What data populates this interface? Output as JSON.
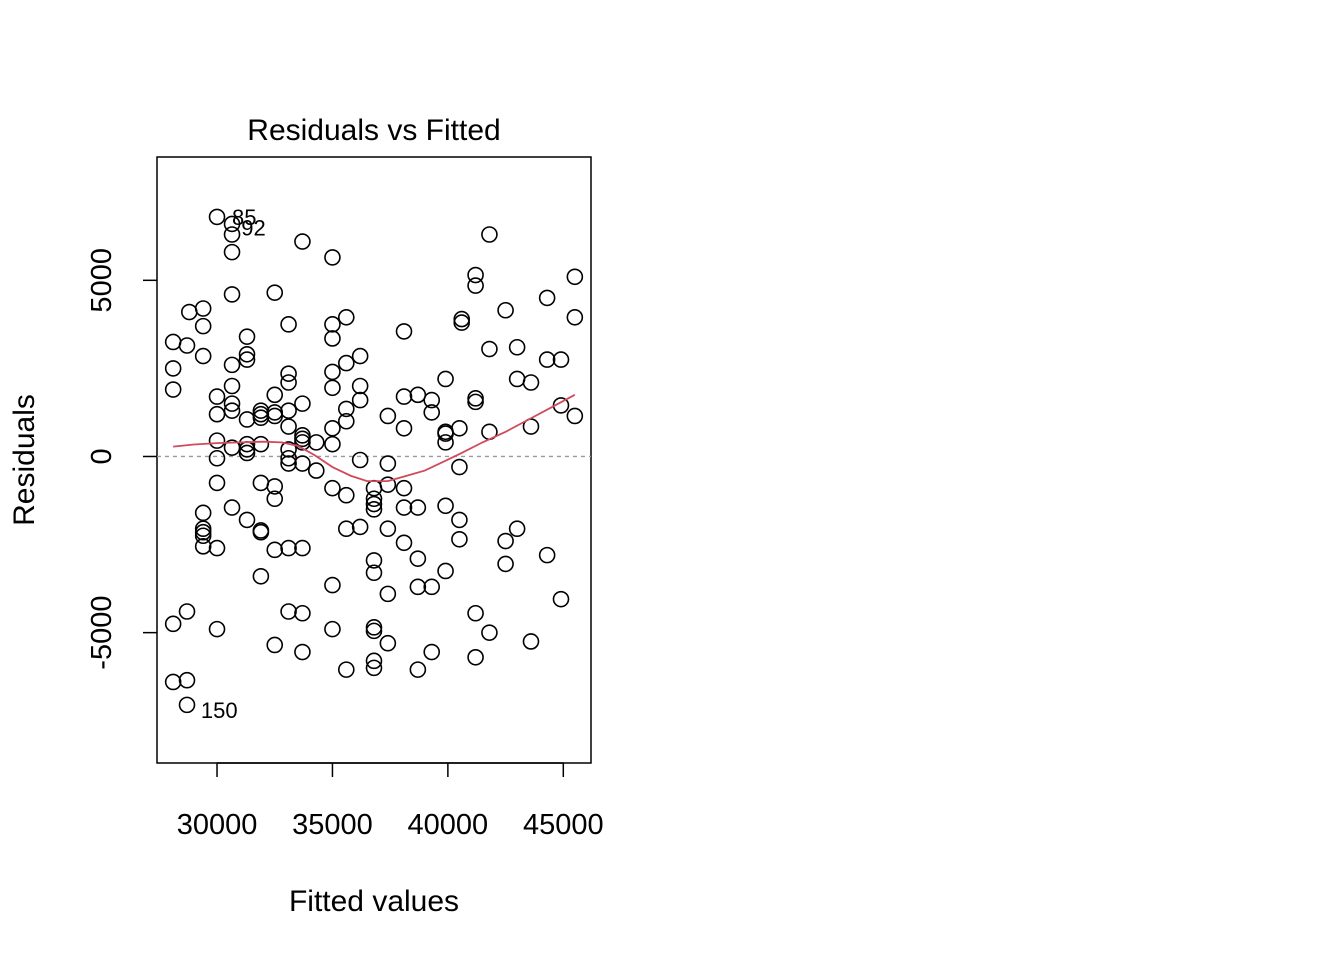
{
  "chart_data": {
    "type": "scatter",
    "title": "Residuals vs Fitted",
    "xlabel": "Fitted values",
    "ylabel": "Residuals",
    "xlim": [
      27400,
      46200
    ],
    "ylim": [
      -8700,
      8500
    ],
    "x_ticks": [
      30000,
      35000,
      40000,
      45000
    ],
    "x_tick_labels": [
      "30000",
      "35000",
      "40000",
      "45000"
    ],
    "y_ticks": [
      -5000,
      0,
      5000
    ],
    "y_tick_labels": [
      "-5000",
      "0",
      "5000"
    ],
    "reference_line": {
      "y": 0,
      "style": "dashed",
      "color": "#9a9a9a"
    },
    "smooth_color": "#d1495b",
    "grid": false,
    "legend": "none",
    "annotations": [
      {
        "label": "85",
        "x": 30650,
        "y": 6800
      },
      {
        "label": "92",
        "x": 31050,
        "y": 6500
      },
      {
        "label": "150",
        "x": 29300,
        "y": -7200
      }
    ],
    "points": [
      [
        30000,
        6800
      ],
      [
        30650,
        6600
      ],
      [
        30650,
        6300
      ],
      [
        30650,
        5800
      ],
      [
        30650,
        4600
      ],
      [
        33700,
        6100
      ],
      [
        35000,
        5650
      ],
      [
        41800,
        6300
      ],
      [
        41200,
        5150
      ],
      [
        41200,
        4850
      ],
      [
        45500,
        5100
      ],
      [
        44300,
        4500
      ],
      [
        45500,
        3950
      ],
      [
        42500,
        4150
      ],
      [
        40600,
        3900
      ],
      [
        40600,
        3800
      ],
      [
        38100,
        3550
      ],
      [
        35600,
        3950
      ],
      [
        35000,
        3750
      ],
      [
        35000,
        3350
      ],
      [
        33100,
        3750
      ],
      [
        32500,
        4650
      ],
      [
        31300,
        3400
      ],
      [
        31300,
        2900
      ],
      [
        31300,
        2750
      ],
      [
        29400,
        4200
      ],
      [
        28800,
        4100
      ],
      [
        29400,
        3700
      ],
      [
        28100,
        3250
      ],
      [
        28700,
        3150
      ],
      [
        29400,
        2850
      ],
      [
        28100,
        2500
      ],
      [
        28100,
        1900
      ],
      [
        30650,
        2600
      ],
      [
        30650,
        2000
      ],
      [
        30000,
        1700
      ],
      [
        30650,
        1500
      ],
      [
        30650,
        1300
      ],
      [
        30000,
        1200
      ],
      [
        31300,
        1050
      ],
      [
        31900,
        1300
      ],
      [
        31900,
        1200
      ],
      [
        31900,
        1100
      ],
      [
        32500,
        1250
      ],
      [
        32500,
        1150
      ],
      [
        32500,
        1750
      ],
      [
        33100,
        2350
      ],
      [
        33100,
        2100
      ],
      [
        33100,
        1300
      ],
      [
        33700,
        1500
      ],
      [
        33100,
        850
      ],
      [
        33700,
        600
      ],
      [
        33700,
        500
      ],
      [
        33700,
        400
      ],
      [
        34300,
        400
      ],
      [
        31300,
        350
      ],
      [
        31900,
        350
      ],
      [
        31300,
        200
      ],
      [
        31300,
        100
      ],
      [
        30650,
        250
      ],
      [
        30000,
        450
      ],
      [
        30000,
        -50
      ],
      [
        33100,
        200
      ],
      [
        33100,
        -50
      ],
      [
        33100,
        -200
      ],
      [
        33700,
        -200
      ],
      [
        34300,
        -400
      ],
      [
        35000,
        2400
      ],
      [
        35000,
        1950
      ],
      [
        35000,
        800
      ],
      [
        35000,
        350
      ],
      [
        35600,
        2650
      ],
      [
        36200,
        2850
      ],
      [
        36200,
        2000
      ],
      [
        36200,
        1600
      ],
      [
        35600,
        1350
      ],
      [
        35600,
        1000
      ],
      [
        36200,
        -100
      ],
      [
        37400,
        1150
      ],
      [
        38100,
        1700
      ],
      [
        38700,
        1750
      ],
      [
        39300,
        1600
      ],
      [
        39300,
        1250
      ],
      [
        38100,
        800
      ],
      [
        39900,
        2200
      ],
      [
        39900,
        700
      ],
      [
        39900,
        650
      ],
      [
        39900,
        400
      ],
      [
        40500,
        800
      ],
      [
        41200,
        1650
      ],
      [
        41200,
        1550
      ],
      [
        41800,
        3050
      ],
      [
        41800,
        700
      ],
      [
        43000,
        3100
      ],
      [
        43000,
        2200
      ],
      [
        43600,
        2100
      ],
      [
        44300,
        2750
      ],
      [
        44900,
        2750
      ],
      [
        44900,
        1450
      ],
      [
        45500,
        1150
      ],
      [
        43600,
        850
      ],
      [
        40500,
        -300
      ],
      [
        37400,
        -200
      ],
      [
        35000,
        -900
      ],
      [
        35600,
        -1100
      ],
      [
        36800,
        -900
      ],
      [
        36800,
        -1200
      ],
      [
        36800,
        -1350
      ],
      [
        36800,
        -1500
      ],
      [
        37400,
        -800
      ],
      [
        38100,
        -900
      ],
      [
        38100,
        -1450
      ],
      [
        38700,
        -1450
      ],
      [
        39900,
        -1400
      ],
      [
        40500,
        -1800
      ],
      [
        35600,
        -2050
      ],
      [
        36200,
        -2000
      ],
      [
        37400,
        -2050
      ],
      [
        38100,
        -2450
      ],
      [
        38700,
        -2900
      ],
      [
        36800,
        -2950
      ],
      [
        36800,
        -3300
      ],
      [
        37400,
        -3900
      ],
      [
        38700,
        -3700
      ],
      [
        39300,
        -3700
      ],
      [
        39900,
        -3250
      ],
      [
        40500,
        -2350
      ],
      [
        42500,
        -2400
      ],
      [
        43000,
        -2050
      ],
      [
        44300,
        -2800
      ],
      [
        42500,
        -3050
      ],
      [
        44900,
        -4050
      ],
      [
        41200,
        -4450
      ],
      [
        41800,
        -5000
      ],
      [
        43600,
        -5250
      ],
      [
        41200,
        -5700
      ],
      [
        39300,
        -5550
      ],
      [
        38700,
        -6050
      ],
      [
        37400,
        -5300
      ],
      [
        36800,
        -5800
      ],
      [
        36800,
        -6000
      ],
      [
        36800,
        -4850
      ],
      [
        36800,
        -4950
      ],
      [
        35600,
        -6050
      ],
      [
        35000,
        -4900
      ],
      [
        35000,
        -3650
      ],
      [
        33700,
        -4450
      ],
      [
        33100,
        -4400
      ],
      [
        33700,
        -5550
      ],
      [
        32500,
        -5350
      ],
      [
        31900,
        -3400
      ],
      [
        32500,
        -2650
      ],
      [
        33100,
        -2600
      ],
      [
        33700,
        -2600
      ],
      [
        31900,
        -2100
      ],
      [
        31900,
        -2150
      ],
      [
        32500,
        -1200
      ],
      [
        32500,
        -850
      ],
      [
        31900,
        -750
      ],
      [
        31300,
        -1800
      ],
      [
        30650,
        -1450
      ],
      [
        30000,
        -750
      ],
      [
        30000,
        -2600
      ],
      [
        29400,
        -1600
      ],
      [
        29400,
        -2050
      ],
      [
        29400,
        -2150
      ],
      [
        29400,
        -2250
      ],
      [
        29400,
        -2550
      ],
      [
        30000,
        -4900
      ],
      [
        28700,
        -4400
      ],
      [
        28100,
        -4750
      ],
      [
        28100,
        -6400
      ],
      [
        28700,
        -6350
      ],
      [
        28700,
        -7050
      ]
    ],
    "smooth": [
      [
        28100,
        280
      ],
      [
        29000,
        340
      ],
      [
        30000,
        380
      ],
      [
        31000,
        400
      ],
      [
        32000,
        420
      ],
      [
        32800,
        400
      ],
      [
        33500,
        300
      ],
      [
        34200,
        50
      ],
      [
        35000,
        -300
      ],
      [
        35800,
        -550
      ],
      [
        36500,
        -700
      ],
      [
        37400,
        -700
      ],
      [
        38200,
        -550
      ],
      [
        39000,
        -400
      ],
      [
        39800,
        -150
      ],
      [
        40600,
        100
      ],
      [
        41500,
        400
      ],
      [
        42500,
        700
      ],
      [
        43500,
        1050
      ],
      [
        44500,
        1400
      ],
      [
        45500,
        1750
      ]
    ]
  }
}
